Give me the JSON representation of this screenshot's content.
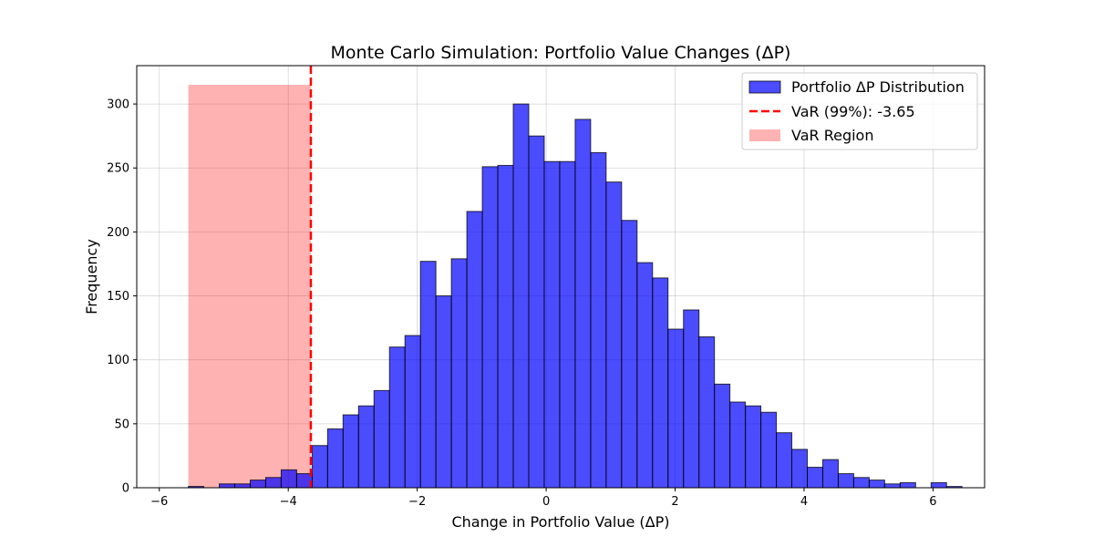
{
  "chart_data": {
    "type": "bar",
    "title": "Monte Carlo Simulation: Portfolio Value Changes (ΔP)",
    "xlabel": "Change in Portfolio Value (ΔP)",
    "ylabel": "Frequency",
    "xlim": [
      -6.35,
      6.8
    ],
    "ylim": [
      0,
      330
    ],
    "xticks": [
      -6,
      -4,
      -2,
      0,
      2,
      4,
      6
    ],
    "xtick_labels": [
      "−6",
      "−4",
      "−2",
      "0",
      "2",
      "4",
      "6"
    ],
    "yticks": [
      0,
      50,
      100,
      150,
      200,
      250,
      300
    ],
    "ytick_labels": [
      "0",
      "50",
      "100",
      "150",
      "200",
      "250",
      "300"
    ],
    "grid": true,
    "legend_position": "top-right",
    "histogram": {
      "name": "Portfolio ΔP Distribution",
      "color": "#0000ff",
      "edge_color": "#000000",
      "opacity": 0.7,
      "bins": [
        {
          "x0": -5.55,
          "x1": -5.31,
          "count": 1
        },
        {
          "x0": -5.31,
          "x1": -5.07,
          "count": 0
        },
        {
          "x0": -5.07,
          "x1": -4.83,
          "count": 3
        },
        {
          "x0": -4.83,
          "x1": -4.59,
          "count": 3
        },
        {
          "x0": -4.59,
          "x1": -4.35,
          "count": 6
        },
        {
          "x0": -4.35,
          "x1": -4.11,
          "count": 8
        },
        {
          "x0": -4.11,
          "x1": -3.87,
          "count": 14
        },
        {
          "x0": -3.87,
          "x1": -3.63,
          "count": 11
        },
        {
          "x0": -3.63,
          "x1": -3.39,
          "count": 33
        },
        {
          "x0": -3.39,
          "x1": -3.15,
          "count": 46
        },
        {
          "x0": -3.15,
          "x1": -2.91,
          "count": 57
        },
        {
          "x0": -2.91,
          "x1": -2.67,
          "count": 64
        },
        {
          "x0": -2.67,
          "x1": -2.43,
          "count": 76
        },
        {
          "x0": -2.43,
          "x1": -2.19,
          "count": 110
        },
        {
          "x0": -2.19,
          "x1": -1.95,
          "count": 119
        },
        {
          "x0": -1.95,
          "x1": -1.71,
          "count": 177
        },
        {
          "x0": -1.71,
          "x1": -1.47,
          "count": 150
        },
        {
          "x0": -1.47,
          "x1": -1.23,
          "count": 179
        },
        {
          "x0": -1.23,
          "x1": -0.99,
          "count": 216
        },
        {
          "x0": -0.99,
          "x1": -0.75,
          "count": 251
        },
        {
          "x0": -0.75,
          "x1": -0.51,
          "count": 252
        },
        {
          "x0": -0.51,
          "x1": -0.27,
          "count": 300
        },
        {
          "x0": -0.27,
          "x1": -0.03,
          "count": 275
        },
        {
          "x0": -0.03,
          "x1": 0.21,
          "count": 255
        },
        {
          "x0": 0.21,
          "x1": 0.45,
          "count": 255
        },
        {
          "x0": 0.45,
          "x1": 0.69,
          "count": 288
        },
        {
          "x0": 0.69,
          "x1": 0.93,
          "count": 262
        },
        {
          "x0": 0.93,
          "x1": 1.17,
          "count": 239
        },
        {
          "x0": 1.17,
          "x1": 1.41,
          "count": 209
        },
        {
          "x0": 1.41,
          "x1": 1.65,
          "count": 176
        },
        {
          "x0": 1.65,
          "x1": 1.89,
          "count": 164
        },
        {
          "x0": 1.89,
          "x1": 2.13,
          "count": 124
        },
        {
          "x0": 2.13,
          "x1": 2.37,
          "count": 139
        },
        {
          "x0": 2.37,
          "x1": 2.61,
          "count": 118
        },
        {
          "x0": 2.61,
          "x1": 2.85,
          "count": 81
        },
        {
          "x0": 2.85,
          "x1": 3.09,
          "count": 67
        },
        {
          "x0": 3.09,
          "x1": 3.33,
          "count": 64
        },
        {
          "x0": 3.33,
          "x1": 3.57,
          "count": 59
        },
        {
          "x0": 3.57,
          "x1": 3.81,
          "count": 43
        },
        {
          "x0": 3.81,
          "x1": 4.05,
          "count": 30
        },
        {
          "x0": 4.05,
          "x1": 4.29,
          "count": 16
        },
        {
          "x0": 4.29,
          "x1": 4.53,
          "count": 22
        },
        {
          "x0": 4.53,
          "x1": 4.77,
          "count": 11
        },
        {
          "x0": 4.77,
          "x1": 5.01,
          "count": 8
        },
        {
          "x0": 5.01,
          "x1": 5.25,
          "count": 6
        },
        {
          "x0": 5.25,
          "x1": 5.49,
          "count": 3
        },
        {
          "x0": 5.49,
          "x1": 5.73,
          "count": 4
        },
        {
          "x0": 5.73,
          "x1": 5.97,
          "count": 0
        },
        {
          "x0": 5.97,
          "x1": 6.21,
          "count": 4
        },
        {
          "x0": 6.21,
          "x1": 6.45,
          "count": 1
        }
      ]
    },
    "var_line": {
      "name": "VaR (99%): -3.65",
      "x": -3.65,
      "color": "#ff0000",
      "style": "dashed"
    },
    "var_region": {
      "name": "VaR Region",
      "x0": -5.55,
      "x1": -3.65,
      "y0": 0,
      "y1": 315,
      "color": "#ff0000",
      "opacity": 0.3
    }
  }
}
